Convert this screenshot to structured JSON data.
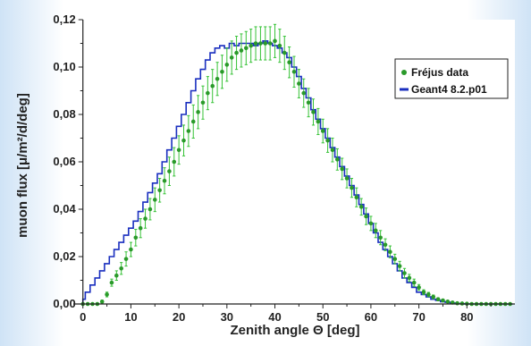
{
  "chart_data": {
    "type": "scatter",
    "xlabel": "Zenith angle Θ [deg]",
    "ylabel": "muon flux [μ/m²/d/deg]",
    "xlim": [
      -2,
      90
    ],
    "ylim": [
      0,
      0.12
    ],
    "x_ticks": [
      0,
      10,
      20,
      30,
      40,
      50,
      60,
      70,
      80
    ],
    "x_tick_labels": [
      "0",
      "10",
      "20",
      "30",
      "40",
      "50",
      "60",
      "70",
      "80"
    ],
    "y_ticks": [
      0,
      0.02,
      0.04,
      0.06,
      0.08,
      0.1,
      0.12
    ],
    "y_tick_labels": [
      "0,00",
      "0,02",
      "0,04",
      "0,06",
      "0,08",
      "0,10",
      "0,12"
    ],
    "grid": false,
    "legend_position": "right",
    "series": [
      {
        "name": "Fréjus data",
        "kind": "points-with-error-bars",
        "color": "#2a9a2a",
        "error_color": "#36c236",
        "x": [
          0,
          1,
          2,
          3,
          4,
          5,
          6,
          7,
          8,
          9,
          10,
          11,
          12,
          13,
          14,
          15,
          16,
          17,
          18,
          19,
          20,
          21,
          22,
          23,
          24,
          25,
          26,
          27,
          28,
          29,
          30,
          31,
          32,
          33,
          34,
          35,
          36,
          37,
          38,
          39,
          40,
          41,
          42,
          43,
          44,
          45,
          46,
          47,
          48,
          49,
          50,
          51,
          52,
          53,
          54,
          55,
          56,
          57,
          58,
          59,
          60,
          61,
          62,
          63,
          64,
          65,
          66,
          67,
          68,
          69,
          70,
          71,
          72,
          73,
          74,
          75,
          76,
          77,
          78,
          79,
          80,
          81,
          82,
          83,
          84,
          85,
          86,
          87,
          88,
          89
        ],
        "y": [
          0.0,
          0.0,
          0.0,
          0.0,
          0.001,
          0.004,
          0.009,
          0.012,
          0.015,
          0.019,
          0.023,
          0.028,
          0.032,
          0.036,
          0.04,
          0.044,
          0.048,
          0.052,
          0.056,
          0.06,
          0.065,
          0.069,
          0.073,
          0.077,
          0.081,
          0.085,
          0.089,
          0.092,
          0.095,
          0.098,
          0.101,
          0.104,
          0.106,
          0.107,
          0.108,
          0.109,
          0.11,
          0.11,
          0.11,
          0.11,
          0.111,
          0.109,
          0.106,
          0.102,
          0.098,
          0.093,
          0.089,
          0.085,
          0.081,
          0.077,
          0.073,
          0.069,
          0.065,
          0.061,
          0.057,
          0.053,
          0.049,
          0.045,
          0.041,
          0.037,
          0.034,
          0.031,
          0.028,
          0.025,
          0.022,
          0.019,
          0.016,
          0.013,
          0.011,
          0.009,
          0.007,
          0.005,
          0.004,
          0.003,
          0.002,
          0.0015,
          0.001,
          0.0006,
          0.0003,
          0.0002,
          0.0001,
          0.0,
          0.0,
          0.0,
          0.0,
          0.0,
          0.0,
          0.0,
          0.0,
          0.0
        ],
        "err": [
          0.0002,
          0.0002,
          0.0003,
          0.0004,
          0.0006,
          0.001,
          0.0015,
          0.002,
          0.0025,
          0.003,
          0.003,
          0.0035,
          0.004,
          0.004,
          0.0045,
          0.005,
          0.005,
          0.0055,
          0.006,
          0.006,
          0.006,
          0.0065,
          0.0065,
          0.007,
          0.007,
          0.007,
          0.007,
          0.007,
          0.007,
          0.007,
          0.007,
          0.007,
          0.007,
          0.007,
          0.007,
          0.007,
          0.007,
          0.007,
          0.007,
          0.007,
          0.007,
          0.007,
          0.007,
          0.0065,
          0.0065,
          0.006,
          0.006,
          0.006,
          0.0055,
          0.0055,
          0.005,
          0.005,
          0.005,
          0.0045,
          0.0045,
          0.004,
          0.004,
          0.004,
          0.0035,
          0.0035,
          0.003,
          0.003,
          0.003,
          0.0025,
          0.0025,
          0.002,
          0.002,
          0.002,
          0.0015,
          0.0015,
          0.0012,
          0.001,
          0.0009,
          0.0008,
          0.0006,
          0.0005,
          0.0004,
          0.0003,
          0.0002,
          0.0002,
          0.0001,
          0.0001,
          0.0001,
          0.0001,
          0.0001,
          0.0001,
          0.0001,
          0.0001,
          0.0001,
          0.0001
        ]
      },
      {
        "name": "Geant4 8.2.p01",
        "kind": "step-histogram",
        "color": "#1a2fbf",
        "x": [
          0,
          1,
          2,
          3,
          4,
          5,
          6,
          7,
          8,
          9,
          10,
          11,
          12,
          13,
          14,
          15,
          16,
          17,
          18,
          19,
          20,
          21,
          22,
          23,
          24,
          25,
          26,
          27,
          28,
          29,
          30,
          31,
          32,
          33,
          34,
          35,
          36,
          37,
          38,
          39,
          40,
          41,
          42,
          43,
          44,
          45,
          46,
          47,
          48,
          49,
          50,
          51,
          52,
          53,
          54,
          55,
          56,
          57,
          58,
          59,
          60,
          61,
          62,
          63,
          64,
          65,
          66,
          67,
          68,
          69,
          70,
          71,
          72,
          73,
          74,
          75,
          76,
          77,
          78,
          79,
          80,
          81,
          82,
          83,
          84,
          85,
          86,
          87,
          88,
          89
        ],
        "y": [
          0.002,
          0.005,
          0.008,
          0.011,
          0.014,
          0.017,
          0.02,
          0.023,
          0.026,
          0.029,
          0.032,
          0.035,
          0.039,
          0.043,
          0.047,
          0.051,
          0.055,
          0.06,
          0.065,
          0.07,
          0.075,
          0.08,
          0.085,
          0.09,
          0.095,
          0.099,
          0.103,
          0.106,
          0.108,
          0.109,
          0.108,
          0.11,
          0.109,
          0.11,
          0.11,
          0.11,
          0.109,
          0.11,
          0.111,
          0.11,
          0.109,
          0.108,
          0.106,
          0.104,
          0.1,
          0.096,
          0.091,
          0.087,
          0.082,
          0.078,
          0.074,
          0.07,
          0.066,
          0.062,
          0.058,
          0.054,
          0.05,
          0.046,
          0.042,
          0.038,
          0.034,
          0.03,
          0.026,
          0.023,
          0.02,
          0.017,
          0.014,
          0.011,
          0.009,
          0.007,
          0.005,
          0.004,
          0.003,
          0.002,
          0.0015,
          0.001,
          0.0007,
          0.0004,
          0.0002,
          0.0001,
          0.0,
          0.0,
          0.0,
          0.0,
          0.0,
          0.0,
          0.0,
          0.0,
          0.0,
          0.0
        ]
      }
    ]
  }
}
